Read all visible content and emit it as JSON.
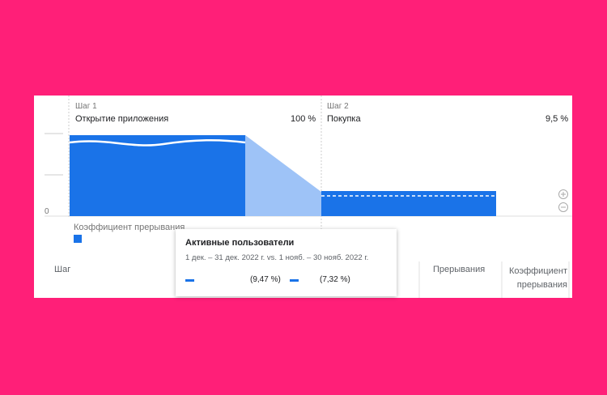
{
  "funnel": {
    "axis_zero": "0",
    "steps": [
      {
        "step": "Шаг 1",
        "name": "Открытие приложения",
        "value_label": "100 %"
      },
      {
        "step": "Шаг 2",
        "name": "Покупка",
        "value_label": "9,5 %"
      }
    ],
    "legend": "Коэффициент прерывания"
  },
  "table": {
    "headers": [
      "Шаг",
      "Прерывания",
      "Коэффициент прерывания"
    ]
  },
  "tooltip": {
    "title": "Активные пользователи",
    "dates": "1 дек. – 31 дек. 2022 г. vs. 1 нояб. – 30 нояб. 2022 г.",
    "values": [
      "(9,47 %)",
      "(7,32 %)"
    ]
  }
}
